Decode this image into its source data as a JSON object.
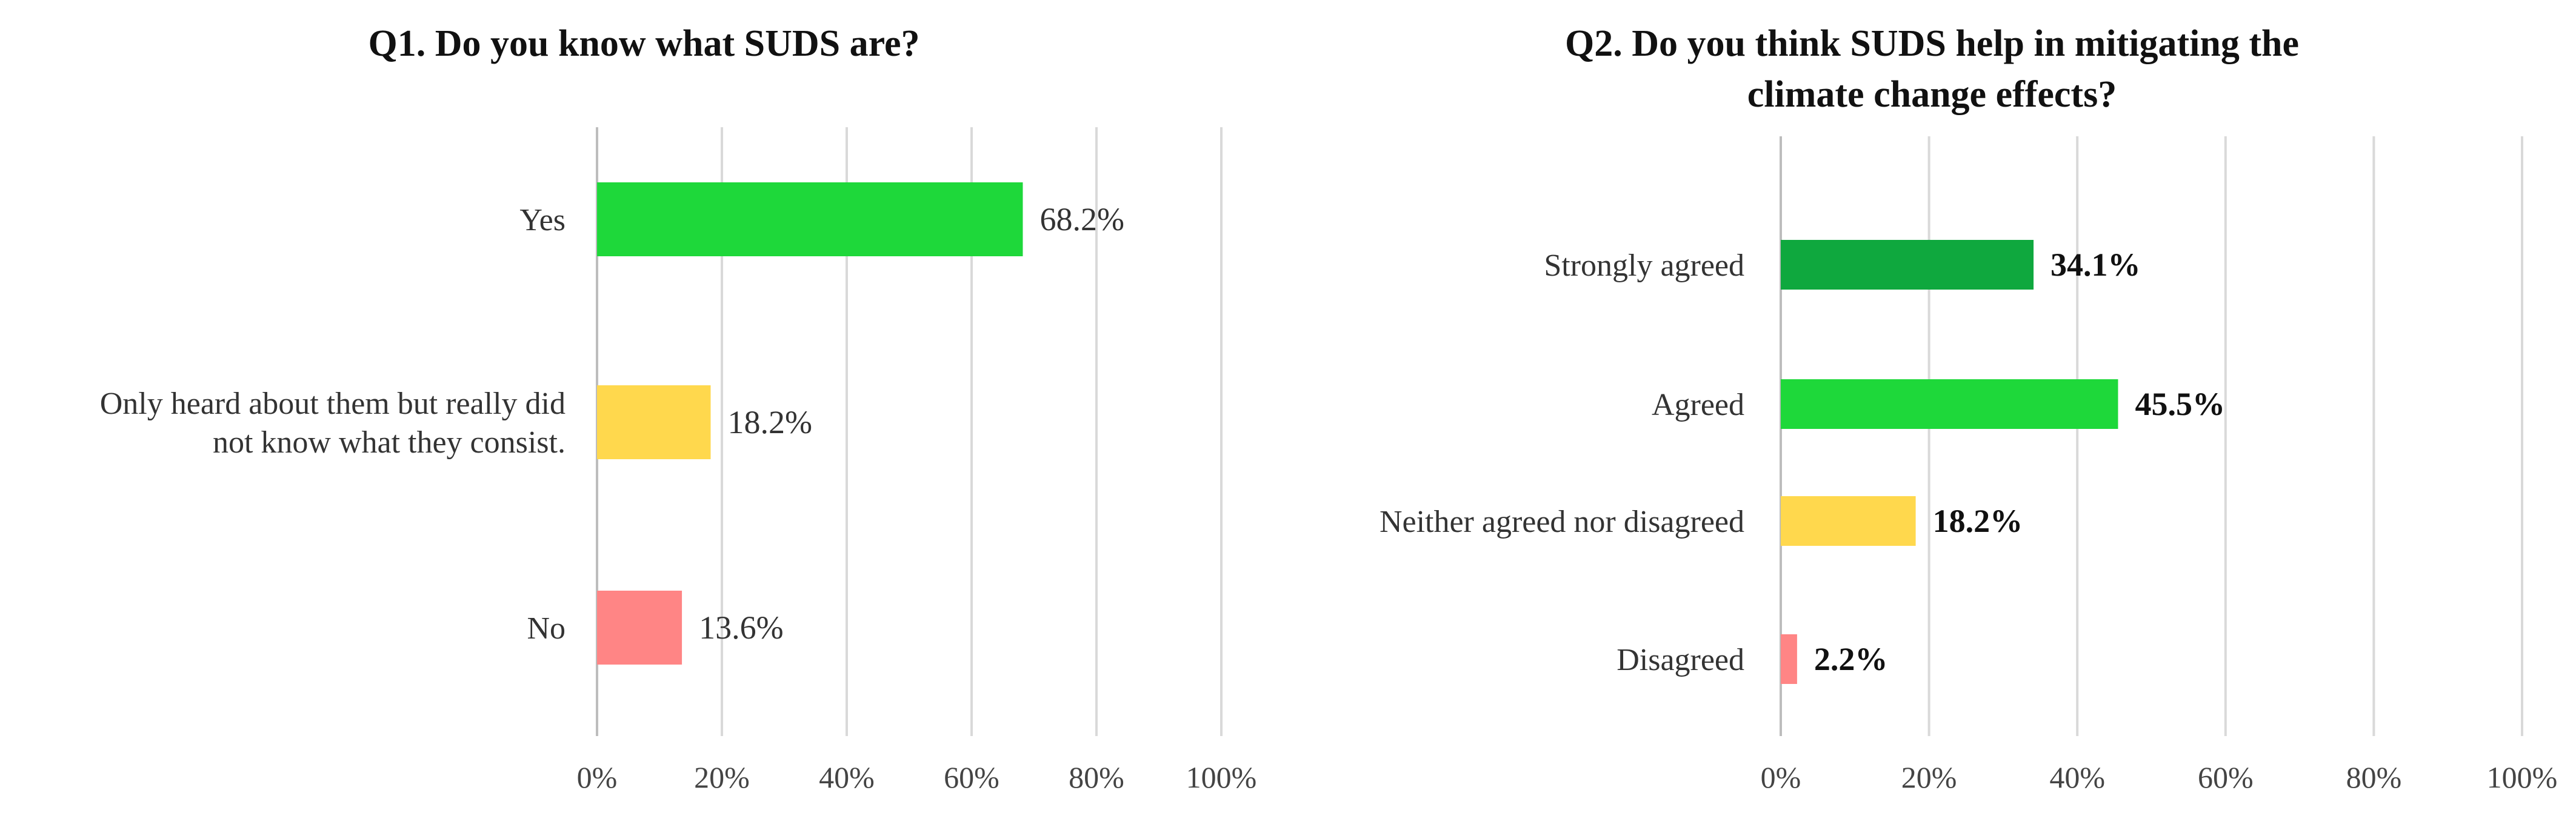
{
  "chart_data": [
    {
      "type": "bar",
      "orientation": "horizontal",
      "title": "Q1. Do you know what SUDS are?",
      "categories": [
        [
          "Yes"
        ],
        [
          "Only heard about them but really did",
          "not know what they consist."
        ],
        [
          "No"
        ]
      ],
      "values": [
        68.2,
        18.2,
        13.6
      ],
      "value_labels": [
        "68.2%",
        "18.2%",
        "13.6%"
      ],
      "colors": [
        "#1ed83a",
        "#ffd84d",
        "#ff8585"
      ],
      "xlim": [
        0,
        100
      ],
      "xticks": [
        "0%",
        "20%",
        "40%",
        "60%",
        "80%",
        "100%"
      ],
      "grid": true,
      "value_labels_bold": false
    },
    {
      "type": "bar",
      "orientation": "horizontal",
      "title": [
        "Q2. Do you think SUDS help in mitigating the",
        "climate change effects?"
      ],
      "categories": [
        [
          "Strongly agreed"
        ],
        [
          "Agreed"
        ],
        [
          "Neither agreed nor disagreed"
        ],
        [
          "Disagreed"
        ]
      ],
      "values": [
        34.1,
        45.5,
        18.2,
        2.2
      ],
      "value_labels": [
        "34.1%",
        "45.5%",
        "18.2%",
        "2.2%"
      ],
      "colors": [
        "#0fa83e",
        "#1ed83a",
        "#ffd84d",
        "#ff8585"
      ],
      "xlim": [
        0,
        100
      ],
      "xticks": [
        "0%",
        "20%",
        "40%",
        "60%",
        "80%",
        "100%"
      ],
      "grid": true,
      "value_labels_bold": true
    }
  ]
}
